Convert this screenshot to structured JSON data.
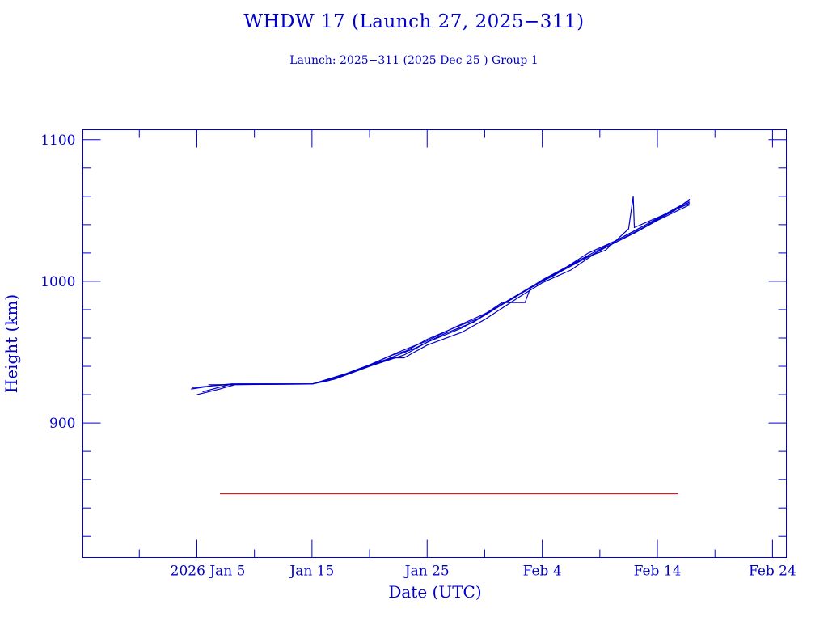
{
  "chart_data": {
    "type": "line",
    "title": "WHDW 17 (Launch 27, 2025−311)",
    "subtitle": "Launch: 2025−311  (2025 Dec 25 )  Group 1",
    "xlabel": "Date (UTC)",
    "ylabel": "Height (km)",
    "x_units": "day of 2026 (Jan 1 = 1)",
    "xlim": [
      -4.9,
      56.2
    ],
    "ylim": [
      805,
      1107
    ],
    "x_major_ticks": [
      {
        "x": 5,
        "label": "2026 Jan  5"
      },
      {
        "x": 15,
        "label": "Jan 15"
      },
      {
        "x": 25,
        "label": "Jan 25"
      },
      {
        "x": 35,
        "label": "Feb  4"
      },
      {
        "x": 45,
        "label": "Feb 14"
      },
      {
        "x": 55,
        "label": "Feb 24"
      }
    ],
    "x_minor_step": 5,
    "y_major_ticks": [
      {
        "y": 900,
        "label": "900"
      },
      {
        "y": 1000,
        "label": "1000"
      },
      {
        "y": 1100,
        "label": "1100"
      }
    ],
    "y_minor_step": 20,
    "grid": false,
    "series_color": "#0000cc",
    "series": [
      {
        "name": "obj-1",
        "points": [
          [
            4.5,
            924
          ],
          [
            6.5,
            926.5
          ],
          [
            8,
            927.5
          ],
          [
            15,
            927.5
          ],
          [
            17,
            931
          ],
          [
            20,
            940
          ],
          [
            23,
            948
          ],
          [
            25,
            957
          ],
          [
            28,
            967
          ],
          [
            30,
            976
          ],
          [
            32,
            986
          ],
          [
            35,
            1000
          ],
          [
            38,
            1013
          ],
          [
            41,
            1026
          ],
          [
            44,
            1039
          ],
          [
            46,
            1048
          ],
          [
            47.8,
            1056
          ]
        ]
      },
      {
        "name": "obj-2",
        "points": [
          [
            5,
            920
          ],
          [
            7,
            924
          ],
          [
            8.5,
            927.5
          ],
          [
            15,
            927.5
          ],
          [
            17.5,
            933
          ],
          [
            20,
            941
          ],
          [
            22.5,
            950
          ],
          [
            25,
            958
          ],
          [
            27.5,
            968
          ],
          [
            30,
            977
          ],
          [
            32.5,
            988
          ],
          [
            35,
            1001
          ],
          [
            38,
            1014
          ],
          [
            41,
            1027
          ],
          [
            44,
            1040
          ],
          [
            46,
            1049
          ],
          [
            47.8,
            1057
          ]
        ]
      },
      {
        "name": "obj-3",
        "points": [
          [
            4.6,
            925
          ],
          [
            7.5,
            927
          ],
          [
            15,
            927.5
          ],
          [
            17,
            932
          ],
          [
            19.5,
            939
          ],
          [
            22,
            946
          ],
          [
            23,
            946
          ],
          [
            25,
            955
          ],
          [
            28,
            964
          ],
          [
            30,
            973
          ],
          [
            33,
            989
          ],
          [
            35,
            999
          ],
          [
            37.5,
            1008
          ],
          [
            40,
            1022
          ],
          [
            43,
            1034
          ],
          [
            45,
            1043
          ],
          [
            47.8,
            1054
          ]
        ]
      },
      {
        "name": "obj-4",
        "points": [
          [
            6,
            927
          ],
          [
            15,
            927.5
          ],
          [
            18,
            935
          ],
          [
            20,
            941
          ],
          [
            22,
            948
          ],
          [
            23.2,
            951
          ],
          [
            25,
            959
          ],
          [
            27,
            966
          ],
          [
            29.5,
            974
          ],
          [
            31.5,
            985
          ],
          [
            33.5,
            985
          ],
          [
            34,
            996
          ],
          [
            36,
            1004
          ],
          [
            38.5,
            1016
          ],
          [
            40.5,
            1022
          ],
          [
            42.5,
            1037
          ],
          [
            42.9,
            1060
          ],
          [
            43,
            1038
          ],
          [
            45,
            1045
          ],
          [
            47.8,
            1055
          ]
        ]
      },
      {
        "name": "obj-5",
        "points": [
          [
            5.5,
            922
          ],
          [
            8,
            927.5
          ],
          [
            15,
            927.5
          ],
          [
            16.5,
            930
          ],
          [
            19,
            938
          ],
          [
            21.5,
            945
          ],
          [
            24,
            953
          ],
          [
            26.5,
            963
          ],
          [
            29,
            971
          ],
          [
            31.5,
            984
          ],
          [
            34,
            996
          ],
          [
            36.5,
            1007
          ],
          [
            39,
            1020
          ],
          [
            41.5,
            1029
          ],
          [
            44,
            1040
          ],
          [
            46.5,
            1050
          ],
          [
            47.8,
            1058
          ]
        ]
      }
    ],
    "reference_line": {
      "y": 850,
      "x_start": 7,
      "x_end": 46.8,
      "color": "#cc0000"
    }
  }
}
